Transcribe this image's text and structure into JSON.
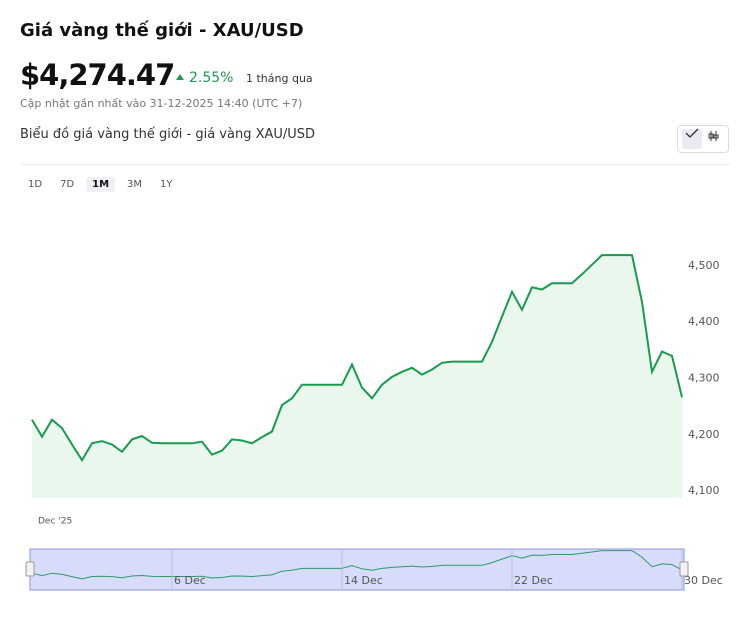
{
  "header": {
    "title": "Giá vàng thế giới - XAU/USD",
    "price": "$4,274.47",
    "change": "2.55%",
    "period": "1 tháng qua",
    "updated": "Cập nhật gần nhất vào 31-12-2025 14:40 (UTC +7)",
    "subtitle": "Biểu đồ giá vàng thế giới - giá vàng XAU/USD"
  },
  "ranges": [
    "1D",
    "7D",
    "1M",
    "3M",
    "1Y"
  ],
  "active_range": "1M",
  "chart_data": {
    "type": "area",
    "color": "#1a9a50",
    "fill": "#e9f7ed",
    "x_label": "Dec '25",
    "categories": [
      null,
      null,
      null,
      null,
      null,
      null,
      null,
      null,
      null,
      null,
      null,
      null,
      null,
      null,
      "6 Dec",
      null,
      null,
      null,
      null,
      null,
      null,
      null,
      null,
      null,
      null,
      null,
      null,
      null,
      null,
      null,
      null,
      "14 Dec",
      null,
      null,
      null,
      null,
      null,
      null,
      null,
      null,
      null,
      null,
      null,
      null,
      null,
      null,
      null,
      null,
      "22 Dec",
      null,
      null,
      null,
      null,
      null,
      null,
      null,
      null,
      null,
      null,
      null,
      null,
      null,
      null,
      null,
      null,
      "30 Dec"
    ],
    "values": [
      4227,
      4197,
      4227,
      4212,
      4183,
      4155,
      4185,
      4189,
      4183,
      4170,
      4192,
      4198,
      4186,
      4185,
      4185,
      4185,
      4185,
      4188,
      4165,
      4172,
      4192,
      4190,
      4185,
      4196,
      4206,
      4253,
      4265,
      4289,
      4289,
      4289,
      4289,
      4289,
      4325,
      4284,
      4265,
      4289,
      4303,
      4312,
      4319,
      4307,
      4316,
      4328,
      4330,
      4330,
      4330,
      4330,
      4365,
      4410,
      4454,
      4422,
      4462,
      4458,
      4469,
      4469,
      4469,
      4485,
      4502,
      4519,
      4519,
      4519,
      4519,
      4436,
      4312,
      4348,
      4340,
      4267
    ],
    "ylim": [
      4088,
      4608
    ],
    "yticks": [
      {
        "value": 4100,
        "label": "4,100"
      },
      {
        "value": 4200,
        "label": "4,200"
      },
      {
        "value": 4300,
        "label": "4,300"
      },
      {
        "value": 4400,
        "label": "4,400"
      },
      {
        "value": 4500,
        "label": "4,500"
      }
    ]
  }
}
